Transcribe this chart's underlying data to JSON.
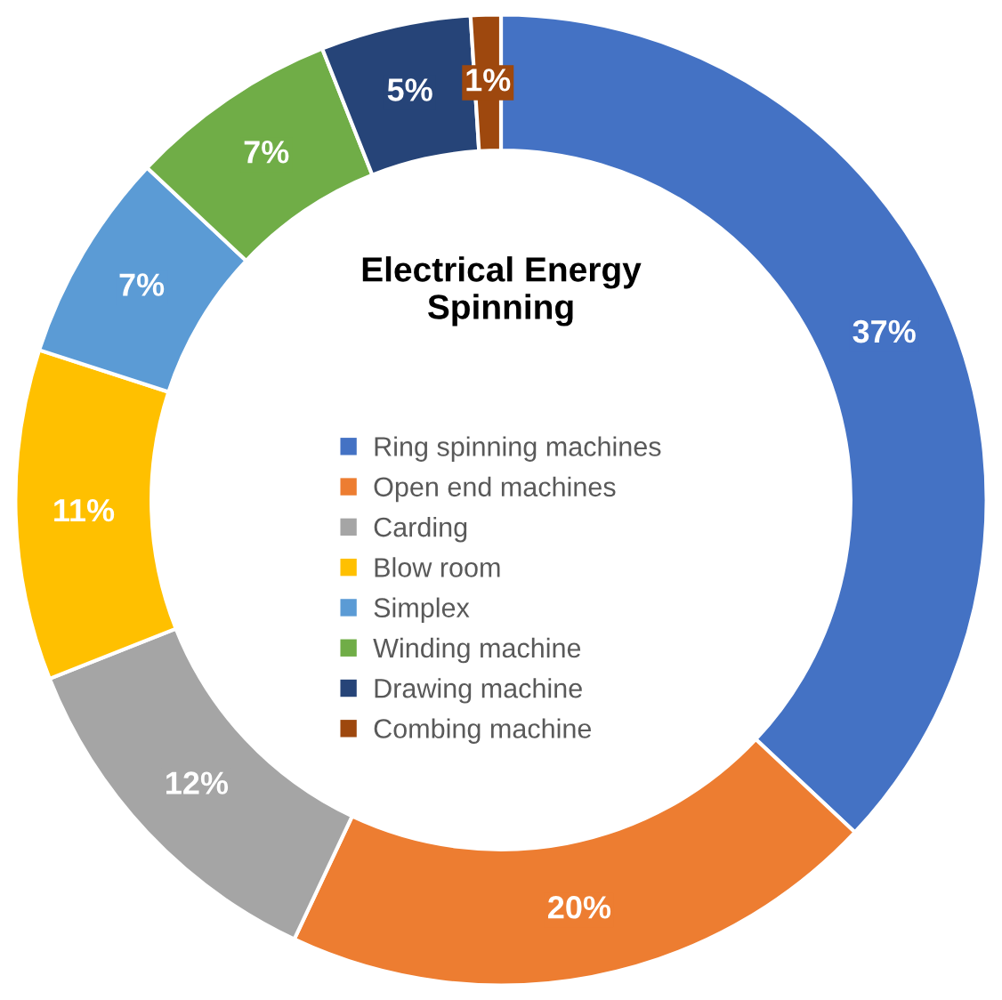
{
  "chart_data": {
    "type": "donut",
    "title": "Electrical Energy\nSpinning",
    "categories": [
      "Ring spinning machines",
      "Open end machines",
      "Carding",
      "Blow room",
      "Simplex",
      "Winding machine",
      "Drawing machine",
      "Combing machine"
    ],
    "values": [
      37,
      20,
      12,
      11,
      7,
      7,
      5,
      1
    ],
    "value_labels": [
      "37%",
      "20%",
      "12%",
      "11%",
      "7%",
      "7%",
      "5%",
      "1%"
    ],
    "colors": [
      "#4472c4",
      "#ed7d31",
      "#a5a5a5",
      "#ffc000",
      "#5b9bd5",
      "#70ad47",
      "#264478",
      "#9e480e"
    ],
    "legend": "center"
  }
}
